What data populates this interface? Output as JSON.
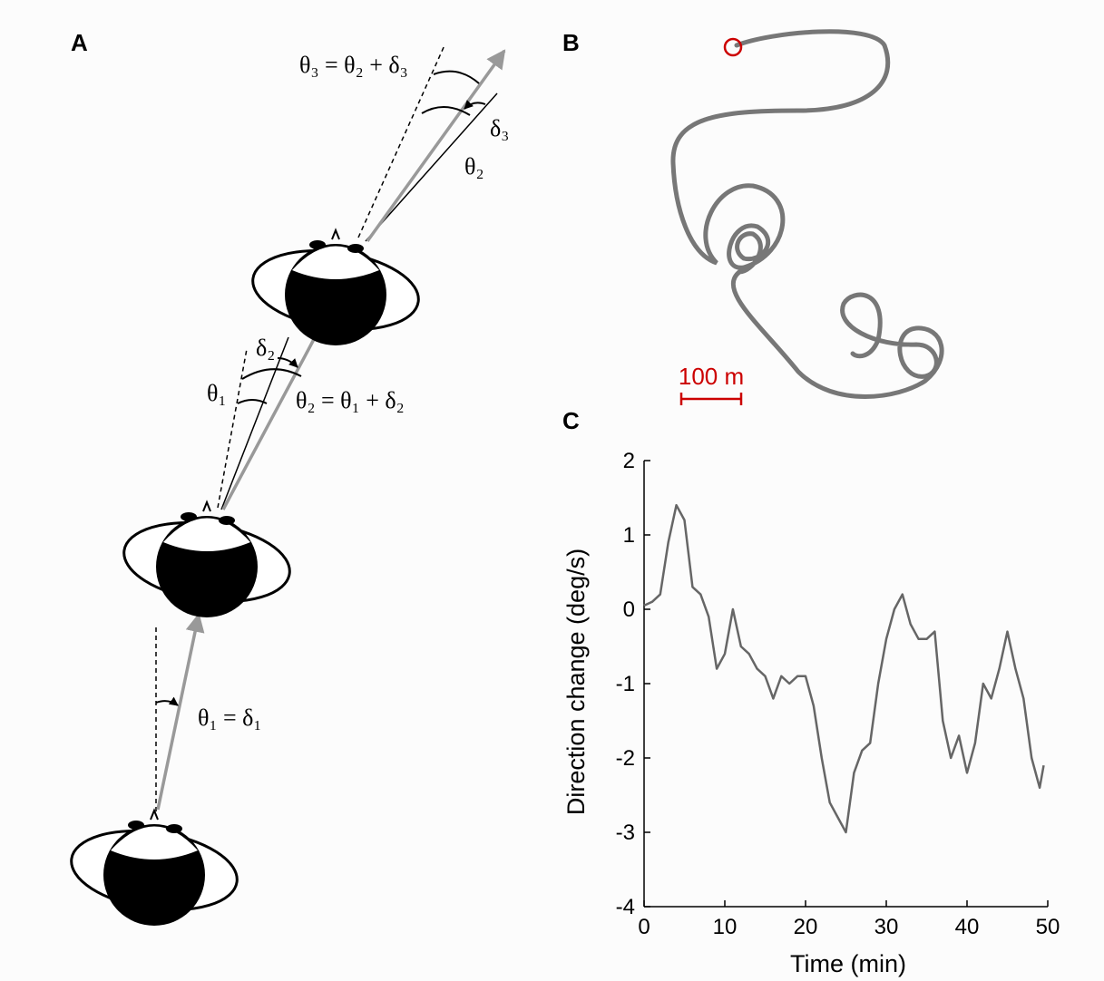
{
  "panels": {
    "a": "A",
    "b": "B",
    "c": "C"
  },
  "diagram": {
    "eq3": "θ₃ = θ₂ + δ₃",
    "delta3": "δ₃",
    "theta2": "θ₂",
    "delta2": "δ₂",
    "theta1": "θ₁",
    "eq2": "θ₂ = θ₁ + δ₂",
    "eq1": "θ₁ = δ₁"
  },
  "trajectory": {
    "scale_label": "100 m"
  },
  "chart_data": {
    "type": "line",
    "xlabel": "Time (min)",
    "ylabel": "Direction change (deg/s)",
    "x": [
      0,
      1,
      2,
      3,
      4,
      5,
      6,
      7,
      8,
      9,
      10,
      11,
      12,
      13,
      14,
      15,
      16,
      17,
      18,
      19,
      20,
      21,
      22,
      23,
      24,
      25,
      26,
      27,
      28,
      29,
      30,
      31,
      32,
      33,
      34,
      35,
      36,
      37,
      38,
      39,
      40,
      41,
      42,
      43,
      44,
      45,
      46,
      47,
      48,
      49,
      49.5
    ],
    "values": [
      0.05,
      0.1,
      0.2,
      0.9,
      1.4,
      1.2,
      0.3,
      0.2,
      -0.1,
      -0.8,
      -0.6,
      0.0,
      -0.5,
      -0.6,
      -0.8,
      -0.9,
      -1.2,
      -0.9,
      -1.0,
      -0.9,
      -0.9,
      -1.3,
      -2.0,
      -2.6,
      -2.8,
      -3.0,
      -2.2,
      -1.9,
      -1.8,
      -1.0,
      -0.4,
      0.0,
      0.2,
      -0.2,
      -0.4,
      -0.4,
      -0.3,
      -1.5,
      -2.0,
      -1.7,
      -2.2,
      -1.8,
      -1.0,
      -1.2,
      -0.8,
      -0.3,
      -0.8,
      -1.2,
      -2.0,
      -2.4,
      -2.1
    ],
    "color": "#666666",
    "xlim": [
      0,
      50
    ],
    "xticks": [
      0,
      10,
      20,
      30,
      40,
      50
    ],
    "ylim": [
      -4,
      2
    ],
    "yticks": [
      -4,
      -3,
      -2,
      -1,
      0,
      1,
      2
    ]
  }
}
